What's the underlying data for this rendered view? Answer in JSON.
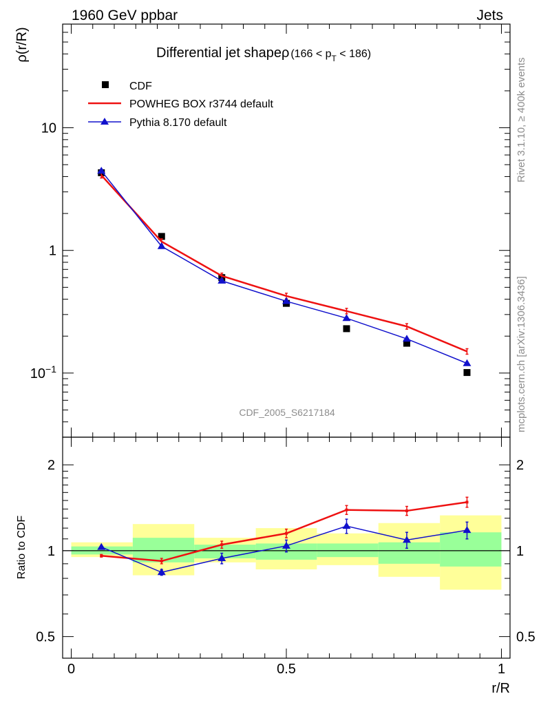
{
  "header": {
    "left_label": "1960 GeV ppbar",
    "right_label": "Jets"
  },
  "side_text": {
    "rivet": "Rivet 3.1.10, ≥ 400k events",
    "source": "mcplots.cern.ch [arXiv:1306.3436]"
  },
  "analysis_id": "CDF_2005_S6217184",
  "chart_data": [
    {
      "type": "line",
      "title": "Differential jet shapeρ",
      "title_range": "(166 < p",
      "title_sub": "T",
      "title_range_end": " < 186)",
      "ylabel": "ρ(r/R)",
      "xlabel": "",
      "yscale": "log",
      "ylim": [
        0.03,
        70
      ],
      "xlim": [
        -0.02,
        1.02
      ],
      "y_tick_labels": [
        {
          "value": 0.1,
          "base": "10",
          "exp": "−1"
        },
        {
          "value": 1,
          "base": "1",
          "exp": ""
        },
        {
          "value": 10,
          "base": "10",
          "exp": ""
        }
      ],
      "legend_position": "top-left",
      "series": [
        {
          "name": "CDF",
          "marker": "square",
          "color": "#000000",
          "x": [
            0.07,
            0.21,
            0.35,
            0.5,
            0.64,
            0.78,
            0.92
          ],
          "y": [
            4.3,
            1.3,
            0.6,
            0.37,
            0.23,
            0.175,
            0.101
          ]
        },
        {
          "name": "POWHEG BOX r3744 default",
          "marker": "line",
          "color": "#ee1111",
          "x": [
            0.07,
            0.21,
            0.35,
            0.5,
            0.64,
            0.78,
            0.92
          ],
          "y": [
            4.1,
            1.18,
            0.62,
            0.425,
            0.32,
            0.24,
            0.15
          ]
        },
        {
          "name": "Pythia 8.170 default",
          "marker": "triangle",
          "color": "#1111cc",
          "x": [
            0.07,
            0.21,
            0.35,
            0.5,
            0.64,
            0.78,
            0.92
          ],
          "y": [
            4.45,
            1.08,
            0.565,
            0.385,
            0.28,
            0.19,
            0.12
          ]
        }
      ]
    },
    {
      "type": "line",
      "ylabel": "Ratio to CDF",
      "xlabel": "r/R",
      "yscale": "log",
      "ylim": [
        0.42,
        2.5
      ],
      "xlim": [
        -0.02,
        1.02
      ],
      "x_ticks": [
        0,
        0.5,
        1
      ],
      "x_tick_labels": [
        "0",
        "0.5",
        "1"
      ],
      "y_ticks": [
        0.5,
        1,
        2
      ],
      "y_tick_labels": [
        "0.5",
        "1",
        "2"
      ],
      "uncertainty_bands": [
        {
          "x0": 0.0,
          "x1": 0.143,
          "inner": [
            0.97,
            1.035
          ],
          "outer": [
            0.95,
            1.07
          ]
        },
        {
          "x0": 0.143,
          "x1": 0.286,
          "inner": [
            0.91,
            1.11
          ],
          "outer": [
            0.82,
            1.24
          ]
        },
        {
          "x0": 0.286,
          "x1": 0.429,
          "inner": [
            0.94,
            1.05
          ],
          "outer": [
            0.91,
            1.11
          ]
        },
        {
          "x0": 0.429,
          "x1": 0.571,
          "inner": [
            0.93,
            1.06
          ],
          "outer": [
            0.86,
            1.2
          ]
        },
        {
          "x0": 0.571,
          "x1": 0.714,
          "inner": [
            0.95,
            1.06
          ],
          "outer": [
            0.89,
            1.15
          ]
        },
        {
          "x0": 0.714,
          "x1": 0.857,
          "inner": [
            0.9,
            1.07
          ],
          "outer": [
            0.81,
            1.25
          ]
        },
        {
          "x0": 0.857,
          "x1": 1.0,
          "inner": [
            0.88,
            1.16
          ],
          "outer": [
            0.73,
            1.33
          ]
        }
      ],
      "series": [
        {
          "name": "POWHEG BOX r3744 default",
          "color": "#ee1111",
          "x": [
            0.07,
            0.21,
            0.35,
            0.5,
            0.64,
            0.78,
            0.92
          ],
          "y": [
            0.96,
            0.92,
            1.05,
            1.15,
            1.39,
            1.38,
            1.48
          ],
          "err": [
            0.01,
            0.02,
            0.03,
            0.04,
            0.05,
            0.05,
            0.06
          ]
        },
        {
          "name": "Pythia 8.170 default",
          "color": "#1111cc",
          "x": [
            0.07,
            0.21,
            0.35,
            0.5,
            0.64,
            0.78,
            0.92
          ],
          "y": [
            1.03,
            0.84,
            0.94,
            1.04,
            1.22,
            1.09,
            1.18
          ],
          "err": [
            0.01,
            0.02,
            0.04,
            0.05,
            0.07,
            0.07,
            0.08
          ]
        }
      ]
    }
  ]
}
